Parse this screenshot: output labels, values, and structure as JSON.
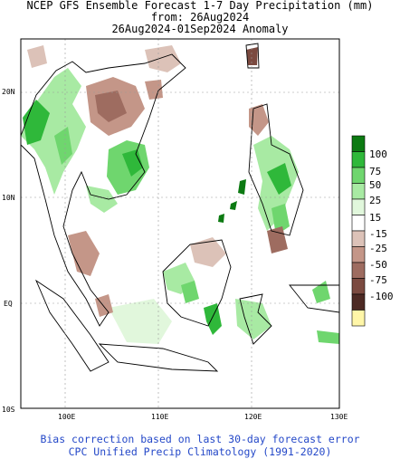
{
  "title": {
    "line1": "NCEP GFS Ensemble Forecast 1-7 Day Precipitation (mm)",
    "line2": "from: 26Aug2024",
    "line3": "26Aug2024-01Sep2024 Anomaly"
  },
  "map": {
    "lon_range": [
      95,
      130
    ],
    "lat_range": [
      -10,
      25
    ],
    "lat_labels": [
      "20N",
      "10N",
      "EQ",
      "10S"
    ],
    "lon_labels": [
      "100E",
      "110E",
      "120E",
      "130E"
    ]
  },
  "legend": {
    "colors": [
      "#0c7a12",
      "#2fb83a",
      "#6fd66e",
      "#a8eaa3",
      "#e1f7dc",
      "#ffffff",
      "#dcc2b8",
      "#c49688",
      "#9e6c60",
      "#7b4a40",
      "#4d2a24",
      "#fff6a8"
    ],
    "labels": [
      "100",
      "75",
      "50",
      "25",
      "15",
      "-15",
      "-25",
      "-50",
      "-75",
      "-100"
    ]
  },
  "footer": {
    "line1": "Bias correction based on last 30-day forecast error",
    "line2": "CPC Unified Precip Climatology (1991-2020)"
  }
}
